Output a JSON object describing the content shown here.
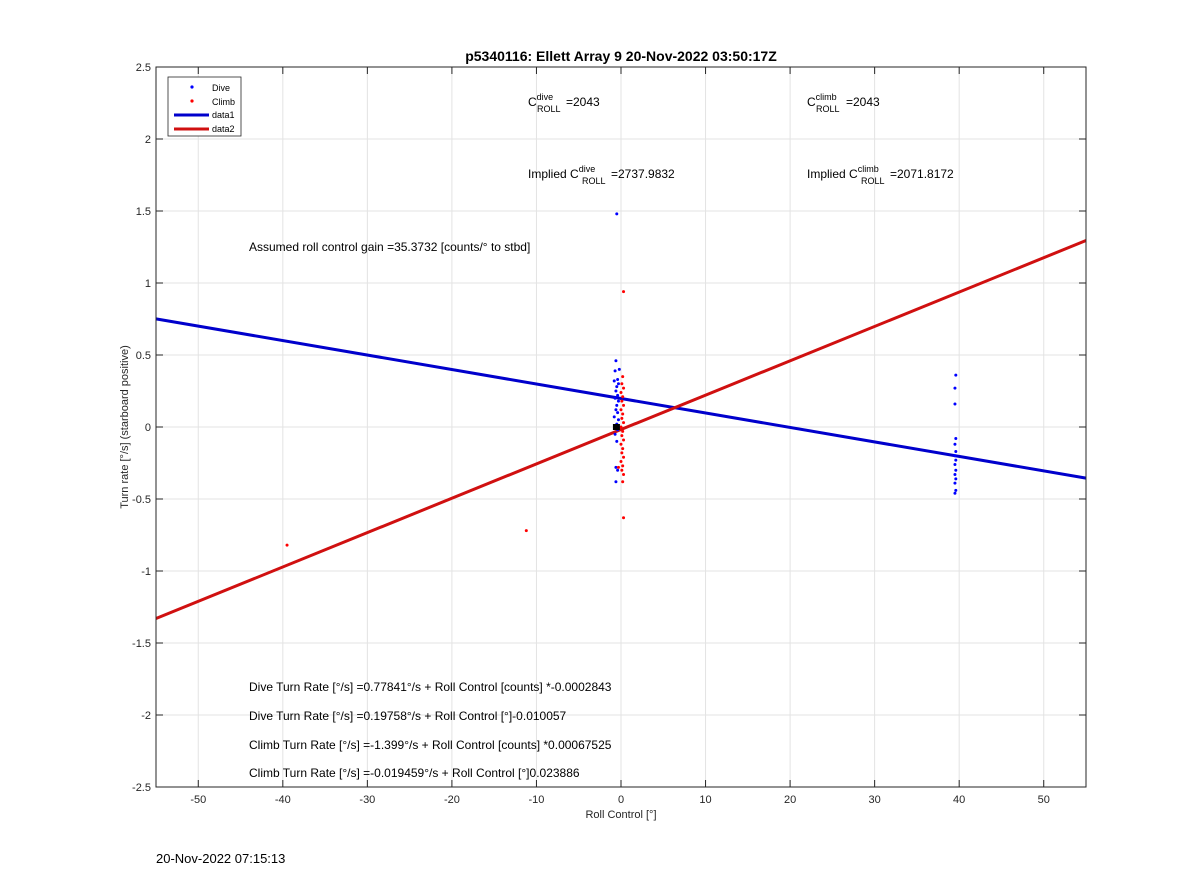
{
  "chart_data": {
    "type": "scatter",
    "title": "p5340116: Ellett Array 9 20-Nov-2022 03:50:17Z",
    "xlabel": "Roll Control [°]",
    "ylabel": "Turn rate [°/s] (starboard positive)",
    "xlim": [
      -55,
      55
    ],
    "ylim": [
      -2.5,
      2.5
    ],
    "x_ticks": [
      -50,
      -40,
      -30,
      -20,
      -10,
      0,
      10,
      20,
      30,
      40,
      50
    ],
    "y_ticks": [
      -2.5,
      -2,
      -1.5,
      -1,
      -0.5,
      0,
      0.5,
      1,
      1.5,
      2,
      2.5
    ],
    "x_tick_labels": [
      "-50",
      "-40",
      "-30",
      "-20",
      "-10",
      "0",
      "10",
      "20",
      "30",
      "40",
      "50"
    ],
    "y_tick_labels": [
      "-2.5",
      "-2",
      "-1.5",
      "-1",
      "-0.5",
      "0",
      "0.5",
      "1",
      "1.5",
      "2",
      "2.5"
    ],
    "grid": true,
    "legend_position": "top-left",
    "series": [
      {
        "name": "Dive",
        "kind": "points",
        "color": "#0000ff",
        "points": [
          [
            -0.5,
            1.48
          ],
          [
            -0.6,
            0.46
          ],
          [
            -0.2,
            0.4
          ],
          [
            -0.7,
            0.39
          ],
          [
            -0.4,
            0.33
          ],
          [
            -0.8,
            0.32
          ],
          [
            -0.3,
            0.3
          ],
          [
            -0.5,
            0.28
          ],
          [
            -0.6,
            0.25
          ],
          [
            -0.4,
            0.22
          ],
          [
            -0.7,
            0.2
          ],
          [
            -0.3,
            0.18
          ],
          [
            -0.5,
            0.15
          ],
          [
            -0.6,
            0.12
          ],
          [
            -0.4,
            0.1
          ],
          [
            -0.8,
            0.07
          ],
          [
            -0.3,
            0.05
          ],
          [
            -0.5,
            0.02
          ],
          [
            -0.6,
            0.0
          ],
          [
            -0.4,
            -0.02
          ],
          [
            -0.7,
            -0.05
          ],
          [
            -0.5,
            -0.1
          ],
          [
            -0.6,
            -0.28
          ],
          [
            -0.4,
            -0.3
          ],
          [
            -0.6,
            -0.38
          ],
          [
            39.6,
            0.36
          ],
          [
            39.5,
            0.27
          ],
          [
            39.5,
            0.16
          ],
          [
            39.6,
            -0.08
          ],
          [
            39.5,
            -0.12
          ],
          [
            39.6,
            -0.17
          ],
          [
            39.5,
            -0.2
          ],
          [
            39.6,
            -0.23
          ],
          [
            39.5,
            -0.26
          ],
          [
            39.6,
            -0.3
          ],
          [
            39.5,
            -0.33
          ],
          [
            39.6,
            -0.36
          ],
          [
            39.5,
            -0.39
          ],
          [
            39.6,
            -0.44
          ],
          [
            39.5,
            -0.46
          ]
        ]
      },
      {
        "name": "Climb",
        "kind": "points",
        "color": "#ff0000",
        "points": [
          [
            0.3,
            0.94
          ],
          [
            0.2,
            0.35
          ],
          [
            0.1,
            0.3
          ],
          [
            0.3,
            0.27
          ],
          [
            0.0,
            0.24
          ],
          [
            0.2,
            0.21
          ],
          [
            0.1,
            0.18
          ],
          [
            0.3,
            0.15
          ],
          [
            0.0,
            0.12
          ],
          [
            0.2,
            0.09
          ],
          [
            0.1,
            0.06
          ],
          [
            0.3,
            0.03
          ],
          [
            0.0,
            0.0
          ],
          [
            0.2,
            -0.03
          ],
          [
            0.1,
            -0.06
          ],
          [
            0.3,
            -0.09
          ],
          [
            0.0,
            -0.12
          ],
          [
            0.2,
            -0.15
          ],
          [
            0.1,
            -0.18
          ],
          [
            0.3,
            -0.21
          ],
          [
            0.0,
            -0.24
          ],
          [
            0.2,
            -0.27
          ],
          [
            -0.3,
            -0.28
          ],
          [
            0.1,
            -0.3
          ],
          [
            0.3,
            -0.33
          ],
          [
            0.2,
            -0.38
          ],
          [
            0.3,
            -0.63
          ],
          [
            -11.2,
            -0.72
          ],
          [
            -39.5,
            -0.82
          ]
        ]
      },
      {
        "name": "data1",
        "kind": "line",
        "color": "#0000cc",
        "x": [
          -55,
          55
        ],
        "y": [
          0.751,
          -0.355
        ]
      },
      {
        "name": "data2",
        "kind": "line",
        "color": "#d01010",
        "x": [
          -55,
          55
        ],
        "y": [
          -1.33,
          1.295
        ]
      }
    ],
    "annotations": {
      "c_dive": {
        "main": "C",
        "sup": "dive",
        "sub": "ROLL",
        "value": "=2043"
      },
      "c_climb": {
        "main": "C",
        "sup": "climb",
        "sub": "ROLL",
        "value": "=2043"
      },
      "implied_dive": {
        "prefix": "Implied ",
        "main": "C",
        "sup": "dive",
        "sub": "ROLL",
        "value": "=2737.9832"
      },
      "implied_climb": {
        "prefix": "Implied ",
        "main": "C",
        "sup": "climb",
        "sub": "ROLL",
        "value": "=2071.8172"
      },
      "gain": "Assumed roll control gain =35.3732 [counts/° to stbd]",
      "fits": [
        "Dive Turn Rate [°/s] =0.77841°/s + Roll Control [counts] *-0.0002843",
        "Dive Turn Rate [°/s] =0.19758°/s + Roll Control [°]-0.010057",
        "Climb Turn Rate [°/s] =-1.399°/s + Roll Control [counts] *0.00067525",
        "Climb Turn Rate [°/s] =-0.019459°/s + Roll Control [°]0.023886"
      ]
    }
  },
  "footer": {
    "timestamp": "20-Nov-2022 07:15:13"
  }
}
